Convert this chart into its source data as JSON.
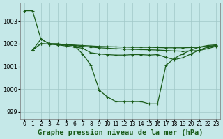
{
  "background_color": "#c5e8e8",
  "grid_color": "#a0c8c8",
  "line_color": "#1a5c1a",
  "xlabel": "Graphe pression niveau de la mer (hPa)",
  "xlabel_fontsize": 7.5,
  "tick_fontsize": 5.5,
  "xlim": [
    -0.5,
    23.5
  ],
  "ylim": [
    998.7,
    1003.8
  ],
  "yticks": [
    999,
    1000,
    1001,
    1002,
    1003
  ],
  "xticks": [
    0,
    1,
    2,
    3,
    4,
    5,
    6,
    7,
    8,
    9,
    10,
    11,
    12,
    13,
    14,
    15,
    16,
    17,
    18,
    19,
    20,
    21,
    22,
    23
  ],
  "curves": [
    {
      "x": [
        0,
        1,
        2,
        3,
        4,
        5,
        6,
        7,
        8,
        9,
        10,
        11,
        12,
        13,
        14,
        15,
        16,
        17,
        18,
        19,
        20,
        21,
        22,
        23
      ],
      "y": [
        1003.45,
        1003.45,
        1002.2,
        1002.0,
        1002.0,
        1001.95,
        1001.92,
        1001.55,
        1001.05,
        999.95,
        999.65,
        999.45,
        999.45,
        999.45,
        999.45,
        999.35,
        999.35,
        1001.05,
        1001.35,
        1001.55,
        1001.72,
        1001.85,
        1001.92,
        1001.95
      ]
    },
    {
      "x": [
        1,
        2,
        3,
        4,
        5,
        6,
        7,
        8,
        9,
        10,
        11,
        12,
        13,
        14,
        15,
        16,
        17,
        18,
        19,
        20,
        21,
        22,
        23
      ],
      "y": [
        1001.72,
        1002.2,
        1002.0,
        1001.98,
        1001.96,
        1001.94,
        1001.92,
        1001.9,
        1001.88,
        1001.87,
        1001.86,
        1001.85,
        1001.84,
        1001.84,
        1001.84,
        1001.83,
        1001.82,
        1001.82,
        1001.82,
        1001.83,
        1001.84,
        1001.88,
        1001.92
      ]
    },
    {
      "x": [
        1,
        2,
        3,
        4,
        5,
        6,
        7,
        8,
        9,
        10,
        11,
        12,
        13,
        14,
        15,
        16,
        17,
        18,
        19,
        20,
        21,
        22,
        23
      ],
      "y": [
        1001.72,
        1002.0,
        1001.98,
        1001.96,
        1001.94,
        1001.92,
        1001.88,
        1001.85,
        1001.82,
        1001.8,
        1001.78,
        1001.76,
        1001.75,
        1001.74,
        1001.73,
        1001.72,
        1001.7,
        1001.68,
        1001.67,
        1001.68,
        1001.7,
        1001.78,
        1001.88
      ]
    },
    {
      "x": [
        1,
        2,
        3,
        4,
        5,
        6,
        7,
        8,
        9,
        10,
        11,
        12,
        13,
        14,
        15,
        16,
        17,
        18,
        19,
        20,
        21,
        22,
        23
      ],
      "y": [
        1001.72,
        1002.0,
        1001.98,
        1001.95,
        1001.9,
        1001.85,
        1001.8,
        1001.6,
        1001.55,
        1001.52,
        1001.5,
        1001.5,
        1001.52,
        1001.52,
        1001.5,
        1001.52,
        1001.4,
        1001.3,
        1001.38,
        1001.55,
        1001.72,
        1001.85,
        1001.92
      ]
    }
  ]
}
